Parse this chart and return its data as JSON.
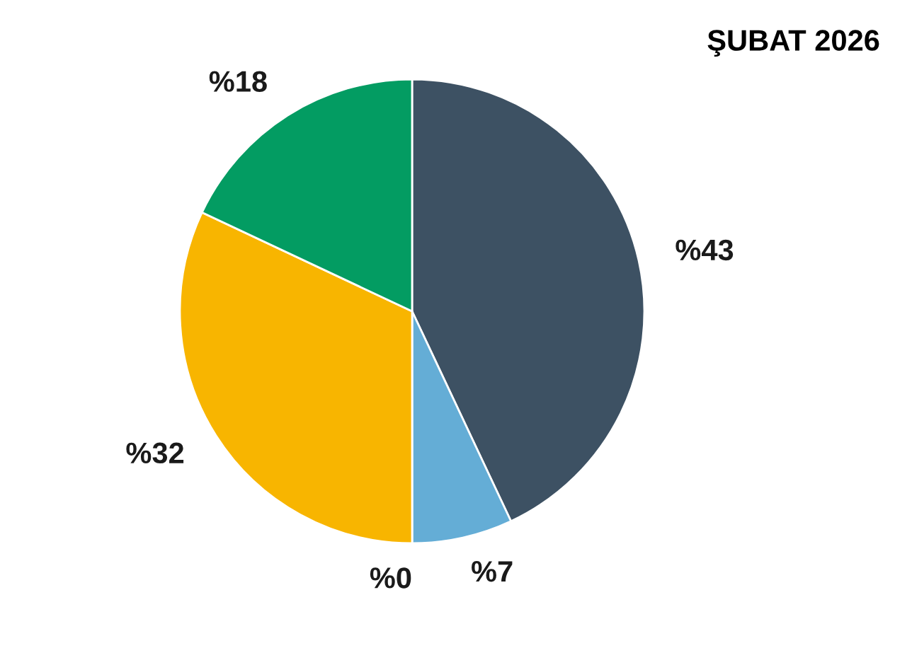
{
  "chart_data": {
    "type": "pie",
    "title": "ŞUBAT 2026",
    "categories": [
      null,
      null,
      null,
      null,
      null
    ],
    "values": [
      43,
      7,
      0,
      32,
      18
    ],
    "colors": [
      "#3d5163",
      "#64add6",
      "#d9d9d9",
      "#f8b500",
      "#039c62"
    ],
    "value_labels": [
      "%43",
      "%7",
      "%0",
      "%32",
      "%18"
    ],
    "legend": false
  }
}
